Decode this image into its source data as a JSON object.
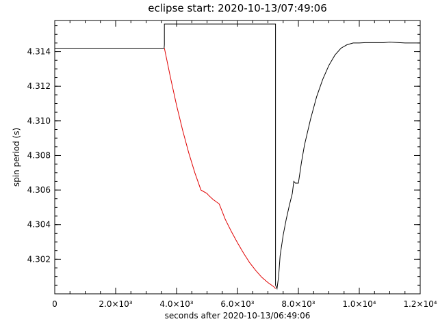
{
  "chart_data": {
    "type": "line",
    "title": "eclipse start: 2020-10-13/07:49:06",
    "xlabel": "seconds after 2020-10-13/06:49:06",
    "ylabel": "spin period (s)",
    "xlim": [
      0,
      12000
    ],
    "ylim": [
      4.3,
      4.3158
    ],
    "grid": false,
    "x_ticks": [
      {
        "value": 0,
        "label": "0"
      },
      {
        "value": 2000,
        "label": "2.0×10³"
      },
      {
        "value": 4000,
        "label": "4.0×10³"
      },
      {
        "value": 6000,
        "label": "6.0×10³"
      },
      {
        "value": 8000,
        "label": "8.0×10³"
      },
      {
        "value": 10000,
        "label": "1.0×10⁴"
      },
      {
        "value": 12000,
        "label": "1.2×10⁴"
      }
    ],
    "x_minor_step": 500,
    "y_ticks": [
      {
        "value": 4.302,
        "label": "4.302"
      },
      {
        "value": 4.304,
        "label": "4.304"
      },
      {
        "value": 4.306,
        "label": "4.306"
      },
      {
        "value": 4.308,
        "label": "4.308"
      },
      {
        "value": 4.31,
        "label": "4.310"
      },
      {
        "value": 4.312,
        "label": "4.312"
      },
      {
        "value": 4.314,
        "label": "4.314"
      }
    ],
    "y_minor_step": 0.0005,
    "series": [
      {
        "color": "#000000",
        "x": [
          0,
          3500,
          3590,
          3600,
          3600,
          7250,
          7250,
          7300,
          7350,
          7400,
          7500,
          7600,
          7700,
          7800,
          7850,
          7900,
          8000,
          8100,
          8200,
          8400,
          8600,
          8800,
          9000,
          9200,
          9400,
          9600,
          9800,
          10000,
          10200,
          10400,
          10600,
          10800,
          11000,
          11500,
          11900,
          12000
        ],
        "y": [
          4.3142,
          4.3142,
          4.3142,
          4.3144,
          4.3156,
          4.3156,
          4.3005,
          4.3003,
          4.301,
          4.3022,
          4.3034,
          4.3043,
          4.3051,
          4.3058,
          4.3065,
          4.3064,
          4.3064,
          4.3076,
          4.3086,
          4.3101,
          4.3114,
          4.3124,
          4.3132,
          4.3138,
          4.3142,
          4.3144,
          4.3145,
          4.3145,
          4.31452,
          4.31452,
          4.31452,
          4.31452,
          4.31455,
          4.3145,
          4.3145,
          4.3145
        ]
      },
      {
        "color": "#e00000",
        "x": [
          3600,
          3800,
          4000,
          4200,
          4400,
          4600,
          4800,
          5000,
          5050,
          5200,
          5400,
          5600,
          5800,
          6000,
          6200,
          6400,
          6600,
          6800,
          7000,
          7200,
          7250
        ],
        "y": [
          4.3142,
          4.3125,
          4.3109,
          4.30945,
          4.30815,
          4.307,
          4.306,
          4.3058,
          4.3057,
          4.30545,
          4.3052,
          4.3043,
          4.3036,
          4.30295,
          4.30235,
          4.3018,
          4.30135,
          4.30095,
          4.30065,
          4.3004,
          4.3003
        ]
      }
    ]
  }
}
